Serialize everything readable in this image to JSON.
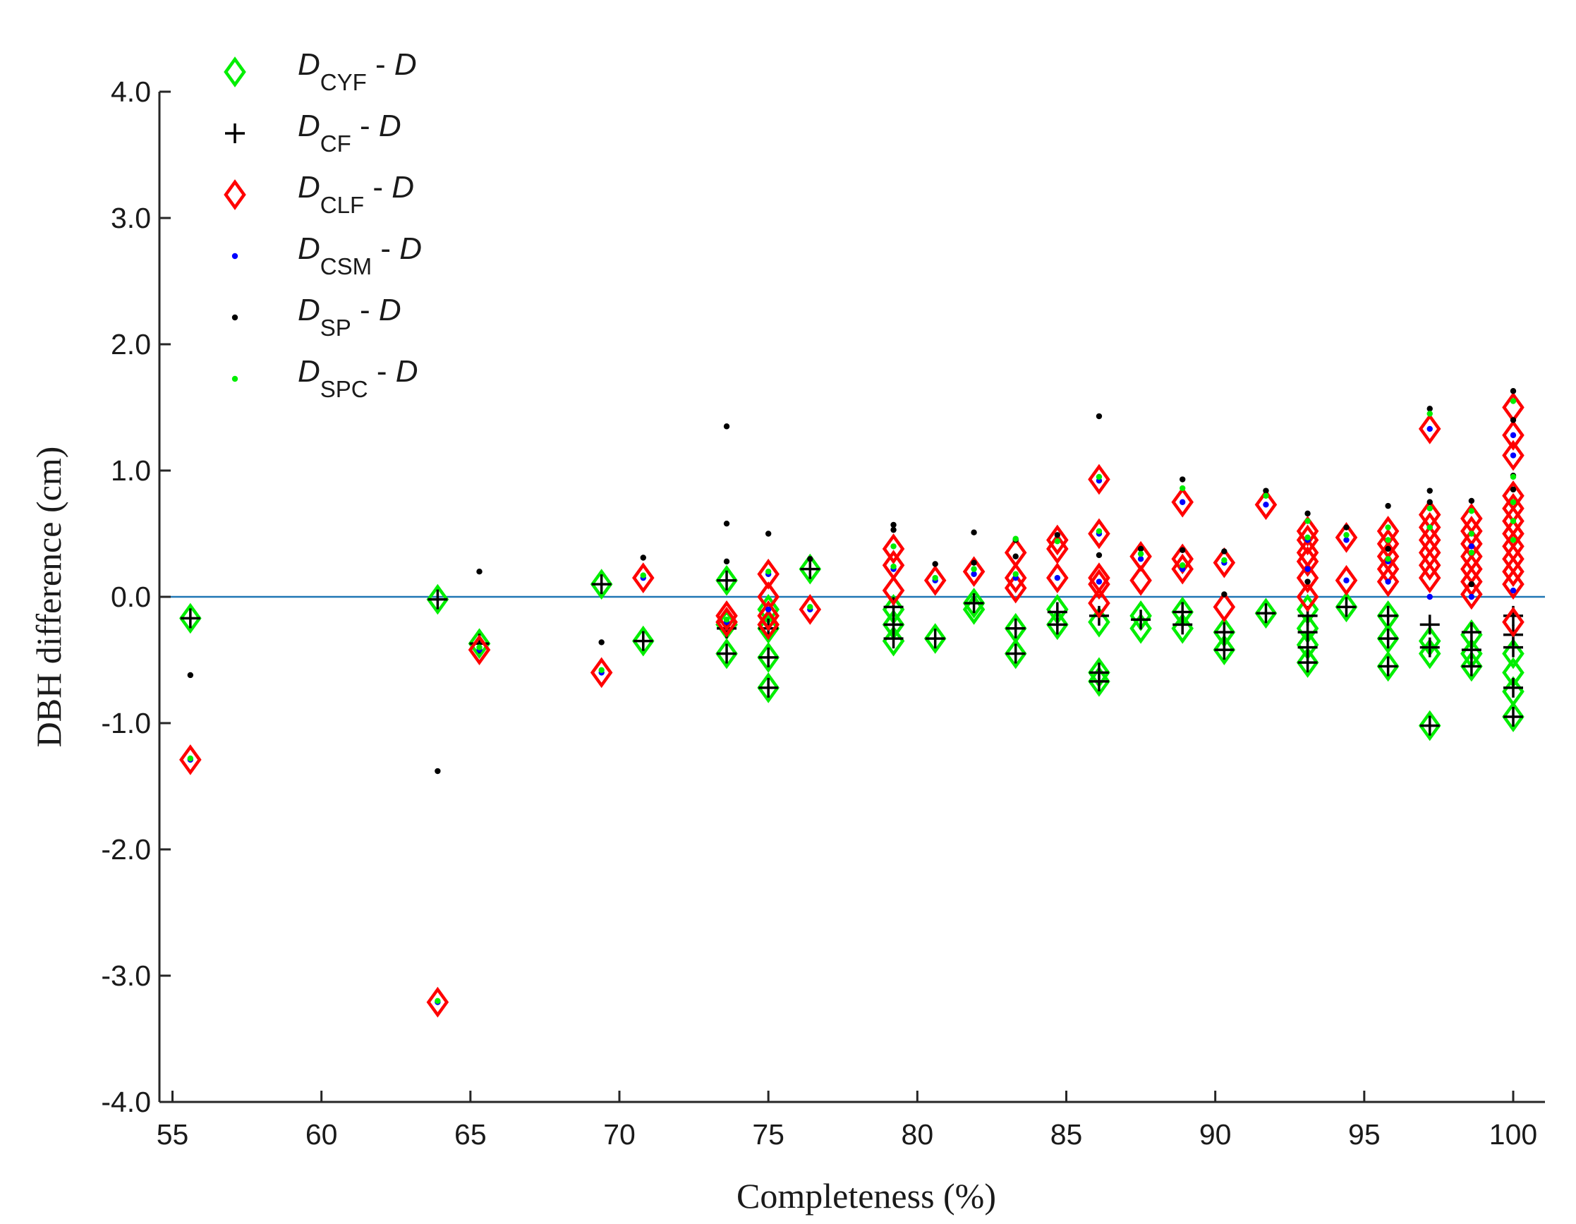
{
  "chart_data": {
    "type": "scatter",
    "title": "",
    "xlabel": "Completeness (%)",
    "ylabel": "DBH difference (cm)",
    "xlim": [
      54.5,
      101
    ],
    "ylim": [
      -4.0,
      4.0
    ],
    "xticks": [
      55,
      60,
      65,
      70,
      75,
      80,
      85,
      90,
      95,
      100
    ],
    "xtick_labels": [
      "55",
      "60",
      "65",
      "70",
      "75",
      "80",
      "85",
      "90",
      "95",
      "100"
    ],
    "yticks": [
      -4,
      -3,
      -2,
      -1,
      0,
      1,
      2,
      3,
      4
    ],
    "ytick_labels": [
      "-4.0",
      "-3.0",
      "-2.0",
      "-1.0",
      "0.0",
      "1.0",
      "2.0",
      "3.0",
      "4.0"
    ],
    "reference_line": {
      "y": 0.0,
      "color": "#1f77b4"
    },
    "legend_position": "top-left",
    "colors": {
      "cyf": "#00ee00",
      "cf": "#000000",
      "clf": "#ff0000",
      "csm": "#0000ff",
      "sp": "#000000",
      "spc": "#00ee00",
      "axis": "#262626"
    },
    "series": [
      {
        "name": "D_CYF - D",
        "marker": "diamond-open",
        "color": "#00ee00",
        "points": [
          [
            55.6,
            -0.17
          ],
          [
            63.9,
            -0.02
          ],
          [
            65.3,
            -0.37
          ],
          [
            69.4,
            0.1
          ],
          [
            70.8,
            -0.35
          ],
          [
            73.6,
            0.13
          ],
          [
            73.6,
            -0.45
          ],
          [
            73.6,
            -0.22
          ],
          [
            75.0,
            -0.48
          ],
          [
            75.0,
            -0.72
          ],
          [
            75.0,
            -0.25
          ],
          [
            75.0,
            -0.1
          ],
          [
            76.4,
            0.22
          ],
          [
            79.2,
            -0.1
          ],
          [
            79.2,
            -0.22
          ],
          [
            79.2,
            -0.35
          ],
          [
            80.6,
            -0.33
          ],
          [
            81.9,
            -0.05
          ],
          [
            81.9,
            -0.1
          ],
          [
            83.3,
            -0.25
          ],
          [
            83.3,
            -0.45
          ],
          [
            84.7,
            -0.1
          ],
          [
            84.7,
            -0.22
          ],
          [
            86.1,
            -0.6
          ],
          [
            86.1,
            -0.67
          ],
          [
            86.1,
            -0.2
          ],
          [
            87.5,
            -0.15
          ],
          [
            87.5,
            -0.25
          ],
          [
            88.9,
            -0.12
          ],
          [
            88.9,
            -0.25
          ],
          [
            90.3,
            -0.28
          ],
          [
            90.3,
            -0.42
          ],
          [
            91.7,
            -0.13
          ],
          [
            93.1,
            -0.1
          ],
          [
            93.1,
            -0.25
          ],
          [
            93.1,
            -0.38
          ],
          [
            93.1,
            -0.52
          ],
          [
            94.4,
            -0.08
          ],
          [
            95.8,
            -0.15
          ],
          [
            95.8,
            -0.33
          ],
          [
            95.8,
            -0.55
          ],
          [
            97.2,
            -1.02
          ],
          [
            97.2,
            -0.45
          ],
          [
            97.2,
            -0.35
          ],
          [
            98.6,
            -0.55
          ],
          [
            98.6,
            -0.45
          ],
          [
            98.6,
            -0.3
          ],
          [
            100.0,
            -0.95
          ],
          [
            100.0,
            -0.75
          ],
          [
            100.0,
            -0.6
          ],
          [
            100.0,
            -0.45
          ]
        ]
      },
      {
        "name": "D_CF - D",
        "marker": "plus",
        "color": "#000000",
        "points": [
          [
            55.6,
            -0.17
          ],
          [
            63.9,
            -0.02
          ],
          [
            65.3,
            -0.37
          ],
          [
            69.4,
            0.1
          ],
          [
            70.8,
            -0.35
          ],
          [
            73.6,
            0.13
          ],
          [
            73.6,
            -0.45
          ],
          [
            73.6,
            -0.25
          ],
          [
            75.0,
            -0.48
          ],
          [
            75.0,
            -0.72
          ],
          [
            75.0,
            -0.25
          ],
          [
            76.4,
            0.22
          ],
          [
            79.2,
            -0.08
          ],
          [
            79.2,
            -0.22
          ],
          [
            79.2,
            -0.33
          ],
          [
            80.6,
            -0.33
          ],
          [
            81.9,
            -0.05
          ],
          [
            83.3,
            -0.25
          ],
          [
            83.3,
            -0.45
          ],
          [
            84.7,
            -0.12
          ],
          [
            84.7,
            -0.22
          ],
          [
            86.1,
            -0.6
          ],
          [
            86.1,
            -0.67
          ],
          [
            86.1,
            -0.15
          ],
          [
            87.5,
            -0.18
          ],
          [
            88.9,
            -0.12
          ],
          [
            88.9,
            -0.22
          ],
          [
            90.3,
            -0.28
          ],
          [
            90.3,
            -0.42
          ],
          [
            91.7,
            -0.13
          ],
          [
            93.1,
            -0.15
          ],
          [
            93.1,
            -0.28
          ],
          [
            93.1,
            -0.4
          ],
          [
            93.1,
            -0.52
          ],
          [
            94.4,
            -0.08
          ],
          [
            95.8,
            -0.15
          ],
          [
            95.8,
            -0.33
          ],
          [
            95.8,
            -0.55
          ],
          [
            97.2,
            -1.02
          ],
          [
            97.2,
            -0.4
          ],
          [
            97.2,
            -0.22
          ],
          [
            98.6,
            -0.55
          ],
          [
            98.6,
            -0.42
          ],
          [
            98.6,
            -0.28
          ],
          [
            100.0,
            -0.95
          ],
          [
            100.0,
            -0.72
          ],
          [
            100.0,
            -0.4
          ],
          [
            100.0,
            -0.3
          ],
          [
            100.0,
            -0.15
          ]
        ]
      },
      {
        "name": "D_CLF - D",
        "marker": "diamond-open",
        "color": "#ff0000",
        "points": [
          [
            55.6,
            -1.29
          ],
          [
            63.9,
            -3.21
          ],
          [
            65.3,
            -0.42
          ],
          [
            69.4,
            -0.6
          ],
          [
            70.8,
            0.15
          ],
          [
            73.6,
            -0.15
          ],
          [
            73.6,
            -0.2
          ],
          [
            75.0,
            0.18
          ],
          [
            75.0,
            0.0
          ],
          [
            75.0,
            -0.15
          ],
          [
            75.0,
            -0.22
          ],
          [
            76.4,
            -0.1
          ],
          [
            79.2,
            0.38
          ],
          [
            79.2,
            0.25
          ],
          [
            79.2,
            0.05
          ],
          [
            80.6,
            0.13
          ],
          [
            81.9,
            0.2
          ],
          [
            83.3,
            0.35
          ],
          [
            83.3,
            0.15
          ],
          [
            83.3,
            0.07
          ],
          [
            84.7,
            0.45
          ],
          [
            84.7,
            0.38
          ],
          [
            84.7,
            0.15
          ],
          [
            86.1,
            0.93
          ],
          [
            86.1,
            0.5
          ],
          [
            86.1,
            0.15
          ],
          [
            86.1,
            0.1
          ],
          [
            86.1,
            -0.05
          ],
          [
            87.5,
            0.32
          ],
          [
            87.5,
            0.13
          ],
          [
            88.9,
            0.75
          ],
          [
            88.9,
            0.3
          ],
          [
            88.9,
            0.22
          ],
          [
            90.3,
            0.27
          ],
          [
            90.3,
            -0.08
          ],
          [
            91.7,
            0.73
          ],
          [
            93.1,
            0.52
          ],
          [
            93.1,
            0.45
          ],
          [
            93.1,
            0.35
          ],
          [
            93.1,
            0.28
          ],
          [
            93.1,
            0.15
          ],
          [
            93.1,
            0.0
          ],
          [
            94.4,
            0.47
          ],
          [
            94.4,
            0.13
          ],
          [
            95.8,
            0.52
          ],
          [
            95.8,
            0.42
          ],
          [
            95.8,
            0.32
          ],
          [
            95.8,
            0.22
          ],
          [
            95.8,
            0.12
          ],
          [
            97.2,
            1.33
          ],
          [
            97.2,
            0.65
          ],
          [
            97.2,
            0.55
          ],
          [
            97.2,
            0.45
          ],
          [
            97.2,
            0.35
          ],
          [
            97.2,
            0.25
          ],
          [
            97.2,
            0.15
          ],
          [
            98.6,
            0.62
          ],
          [
            98.6,
            0.52
          ],
          [
            98.6,
            0.42
          ],
          [
            98.6,
            0.32
          ],
          [
            98.6,
            0.22
          ],
          [
            98.6,
            0.12
          ],
          [
            98.6,
            0.02
          ],
          [
            100.0,
            1.5
          ],
          [
            100.0,
            1.28
          ],
          [
            100.0,
            1.12
          ],
          [
            100.0,
            0.8
          ],
          [
            100.0,
            0.7
          ],
          [
            100.0,
            0.6
          ],
          [
            100.0,
            0.5
          ],
          [
            100.0,
            0.4
          ],
          [
            100.0,
            0.3
          ],
          [
            100.0,
            0.2
          ],
          [
            100.0,
            0.1
          ],
          [
            100.0,
            -0.2
          ]
        ]
      },
      {
        "name": "D_CSM - D",
        "marker": "dot",
        "color": "#0000ff",
        "points": [
          [
            55.6,
            -1.29
          ],
          [
            63.9,
            -3.21
          ],
          [
            65.3,
            -0.42
          ],
          [
            69.4,
            -0.6
          ],
          [
            70.8,
            0.15
          ],
          [
            73.6,
            -0.2
          ],
          [
            75.0,
            0.18
          ],
          [
            75.0,
            -0.1
          ],
          [
            76.4,
            -0.1
          ],
          [
            79.2,
            0.22
          ],
          [
            80.6,
            0.13
          ],
          [
            81.9,
            0.18
          ],
          [
            83.3,
            0.15
          ],
          [
            84.7,
            0.15
          ],
          [
            86.1,
            0.92
          ],
          [
            86.1,
            0.5
          ],
          [
            86.1,
            0.12
          ],
          [
            87.5,
            0.3
          ],
          [
            88.9,
            0.75
          ],
          [
            88.9,
            0.22
          ],
          [
            90.3,
            0.27
          ],
          [
            91.7,
            0.73
          ],
          [
            93.1,
            0.45
          ],
          [
            93.1,
            0.22
          ],
          [
            94.4,
            0.45
          ],
          [
            94.4,
            0.13
          ],
          [
            95.8,
            0.28
          ],
          [
            95.8,
            0.12
          ],
          [
            97.2,
            1.33
          ],
          [
            97.2,
            0.55
          ],
          [
            97.2,
            0.0
          ],
          [
            98.6,
            0.4
          ],
          [
            98.6,
            0.0
          ],
          [
            100.0,
            1.28
          ],
          [
            100.0,
            1.12
          ],
          [
            100.0,
            0.05
          ]
        ]
      },
      {
        "name": "D_SP - D",
        "marker": "dot",
        "color": "#000000",
        "points": [
          [
            55.6,
            -0.62
          ],
          [
            63.9,
            -1.38
          ],
          [
            65.3,
            0.2
          ],
          [
            69.4,
            -0.36
          ],
          [
            70.8,
            0.31
          ],
          [
            73.6,
            1.35
          ],
          [
            73.6,
            0.58
          ],
          [
            73.6,
            0.28
          ],
          [
            75.0,
            0.5
          ],
          [
            76.4,
            0.3
          ],
          [
            79.2,
            0.57
          ],
          [
            79.2,
            0.53
          ],
          [
            80.6,
            0.26
          ],
          [
            81.9,
            0.51
          ],
          [
            81.9,
            0.27
          ],
          [
            83.3,
            0.45
          ],
          [
            83.3,
            0.32
          ],
          [
            84.7,
            0.49
          ],
          [
            86.1,
            1.43
          ],
          [
            86.1,
            0.33
          ],
          [
            87.5,
            0.38
          ],
          [
            88.9,
            0.93
          ],
          [
            88.9,
            0.37
          ],
          [
            90.3,
            0.36
          ],
          [
            90.3,
            0.02
          ],
          [
            91.7,
            0.84
          ],
          [
            93.1,
            0.66
          ],
          [
            93.1,
            0.12
          ],
          [
            94.4,
            0.55
          ],
          [
            95.8,
            0.72
          ],
          [
            95.8,
            0.38
          ],
          [
            97.2,
            1.49
          ],
          [
            97.2,
            0.84
          ],
          [
            97.2,
            0.75
          ],
          [
            98.6,
            0.76
          ],
          [
            98.6,
            0.1
          ],
          [
            100.0,
            1.63
          ],
          [
            100.0,
            1.4
          ],
          [
            100.0,
            0.96
          ],
          [
            100.0,
            0.85
          ]
        ]
      },
      {
        "name": "D_SPC - D",
        "marker": "dot",
        "color": "#00ee00",
        "points": [
          [
            55.6,
            -1.28
          ],
          [
            63.9,
            -3.2
          ],
          [
            65.3,
            -0.4
          ],
          [
            69.4,
            -0.58
          ],
          [
            70.8,
            0.17
          ],
          [
            73.6,
            -0.18
          ],
          [
            75.0,
            0.2
          ],
          [
            76.4,
            -0.08
          ],
          [
            79.2,
            0.4
          ],
          [
            79.2,
            0.24
          ],
          [
            80.6,
            0.15
          ],
          [
            81.9,
            0.22
          ],
          [
            83.3,
            0.46
          ],
          [
            83.3,
            0.18
          ],
          [
            84.7,
            0.44
          ],
          [
            86.1,
            0.95
          ],
          [
            86.1,
            0.52
          ],
          [
            87.5,
            0.34
          ],
          [
            88.9,
            0.86
          ],
          [
            88.9,
            0.25
          ],
          [
            90.3,
            0.29
          ],
          [
            91.7,
            0.8
          ],
          [
            93.1,
            0.6
          ],
          [
            93.1,
            0.47
          ],
          [
            94.4,
            0.49
          ],
          [
            95.8,
            0.55
          ],
          [
            95.8,
            0.45
          ],
          [
            95.8,
            0.3
          ],
          [
            97.2,
            1.45
          ],
          [
            97.2,
            0.7
          ],
          [
            97.2,
            0.55
          ],
          [
            98.6,
            0.68
          ],
          [
            98.6,
            0.5
          ],
          [
            98.6,
            0.35
          ],
          [
            100.0,
            1.55
          ],
          [
            100.0,
            0.95
          ],
          [
            100.0,
            0.75
          ],
          [
            100.0,
            0.6
          ],
          [
            100.0,
            0.45
          ]
        ]
      }
    ],
    "legend": [
      {
        "main": "D",
        "sub": "CYF",
        "suffix": " - ",
        "var": "D"
      },
      {
        "main": "D",
        "sub": "CF",
        "suffix": " - ",
        "var": "D"
      },
      {
        "main": "D",
        "sub": "CLF",
        "suffix": " - ",
        "var": "D"
      },
      {
        "main": "D",
        "sub": "CSM",
        "suffix": " - ",
        "var": "D"
      },
      {
        "main": "D",
        "sub": "SP",
        "suffix": " - ",
        "var": "D"
      },
      {
        "main": "D",
        "sub": "SPC",
        "suffix": " - ",
        "var": "D"
      }
    ]
  }
}
